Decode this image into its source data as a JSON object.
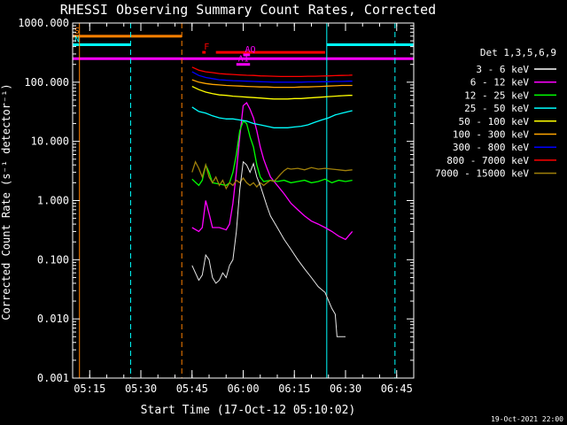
{
  "chart_data": {
    "type": "line",
    "title": "RHESSI Observing Summary Count Rates, Corrected",
    "xlabel": "Start Time (17-Oct-12 05:10:02)",
    "ylabel": "Corrected Count Rate (s⁻¹ detector⁻¹)",
    "footer": "19-Oct-2021 22:00",
    "yscale": "log",
    "ylim": [
      0.001,
      1000
    ],
    "xlim_min": [
      0,
      100
    ],
    "y_ticks": [
      {
        "v": 1000,
        "label": "1000.000"
      },
      {
        "v": 100,
        "label": "100.000"
      },
      {
        "v": 10,
        "label": "10.000"
      },
      {
        "v": 1,
        "label": "1.000"
      },
      {
        "v": 0.1,
        "label": "0.100"
      },
      {
        "v": 0.01,
        "label": "0.010"
      },
      {
        "v": 0.001,
        "label": "0.001"
      }
    ],
    "x_ticks": [
      {
        "v": 5,
        "label": "05:15"
      },
      {
        "v": 20,
        "label": "05:30"
      },
      {
        "v": 35,
        "label": "05:45"
      },
      {
        "v": 50,
        "label": "06:00"
      },
      {
        "v": 65,
        "label": "06:15"
      },
      {
        "v": 80,
        "label": "06:30"
      },
      {
        "v": 95,
        "label": "06:45"
      }
    ],
    "legend": {
      "title": "Det 1,3,5,6,9",
      "position": "right"
    },
    "series": [
      {
        "name": "3 - 6 keV",
        "color": "#000000",
        "points": [
          [
            35,
            0.08
          ],
          [
            36,
            0.06
          ],
          [
            37,
            0.045
          ],
          [
            38,
            0.055
          ],
          [
            39,
            0.12
          ],
          [
            40,
            0.1
          ],
          [
            41,
            0.05
          ],
          [
            42,
            0.04
          ],
          [
            43,
            0.045
          ],
          [
            44,
            0.06
          ],
          [
            45,
            0.05
          ],
          [
            46,
            0.08
          ],
          [
            47,
            0.1
          ],
          [
            48,
            0.3
          ],
          [
            49,
            1.5
          ],
          [
            50,
            4.5
          ],
          [
            51,
            4.0
          ],
          [
            52,
            3.0
          ],
          [
            53,
            4.2
          ],
          [
            54,
            2.5
          ],
          [
            55,
            1.8
          ],
          [
            56,
            1.2
          ],
          [
            57,
            0.8
          ],
          [
            58,
            0.55
          ],
          [
            60,
            0.35
          ],
          [
            62,
            0.22
          ],
          [
            64,
            0.15
          ],
          [
            66,
            0.1
          ],
          [
            68,
            0.07
          ],
          [
            70,
            0.05
          ],
          [
            72,
            0.035
          ],
          [
            74,
            0.028
          ],
          [
            76,
            0.015
          ],
          [
            77,
            0.012
          ],
          [
            77.5,
            0.005
          ],
          [
            80,
            0.005
          ]
        ]
      },
      {
        "name": "6 - 12 keV",
        "color": "#ff00ff",
        "points": [
          [
            35,
            0.35
          ],
          [
            37,
            0.3
          ],
          [
            38,
            0.35
          ],
          [
            39,
            1.0
          ],
          [
            40,
            0.6
          ],
          [
            41,
            0.35
          ],
          [
            43,
            0.35
          ],
          [
            45,
            0.32
          ],
          [
            46,
            0.4
          ],
          [
            47,
            0.9
          ],
          [
            48,
            3.0
          ],
          [
            49,
            12
          ],
          [
            50,
            40
          ],
          [
            51,
            45
          ],
          [
            52,
            35
          ],
          [
            53,
            25
          ],
          [
            54,
            15
          ],
          [
            55,
            8
          ],
          [
            56,
            5
          ],
          [
            57,
            3.5
          ],
          [
            58,
            2.5
          ],
          [
            60,
            1.8
          ],
          [
            62,
            1.3
          ],
          [
            64,
            0.9
          ],
          [
            66,
            0.7
          ],
          [
            68,
            0.55
          ],
          [
            70,
            0.45
          ],
          [
            72,
            0.4
          ],
          [
            74,
            0.35
          ],
          [
            76,
            0.3
          ],
          [
            78,
            0.25
          ],
          [
            80,
            0.22
          ],
          [
            82,
            0.3
          ]
        ]
      },
      {
        "name": "12 - 25 keV",
        "color": "#00ff00",
        "points": [
          [
            35,
            2.3
          ],
          [
            37,
            1.8
          ],
          [
            38,
            2.2
          ],
          [
            39,
            4.0
          ],
          [
            40,
            3.0
          ],
          [
            41,
            2.0
          ],
          [
            43,
            1.9
          ],
          [
            45,
            1.8
          ],
          [
            46,
            2.0
          ],
          [
            47,
            3.0
          ],
          [
            48,
            6
          ],
          [
            49,
            15
          ],
          [
            50,
            22
          ],
          [
            51,
            20
          ],
          [
            52,
            12
          ],
          [
            53,
            8
          ],
          [
            54,
            4
          ],
          [
            55,
            2.5
          ],
          [
            56,
            2.1
          ],
          [
            58,
            2.2
          ],
          [
            60,
            2.1
          ],
          [
            62,
            2.2
          ],
          [
            64,
            2.0
          ],
          [
            66,
            2.1
          ],
          [
            68,
            2.2
          ],
          [
            70,
            2.0
          ],
          [
            72,
            2.1
          ],
          [
            74,
            2.3
          ],
          [
            76,
            2.0
          ],
          [
            78,
            2.2
          ],
          [
            80,
            2.1
          ],
          [
            82,
            2.2
          ]
        ]
      },
      {
        "name": "25 - 50 keV",
        "color": "#00ffff",
        "points": [
          [
            35,
            38
          ],
          [
            37,
            32
          ],
          [
            39,
            30
          ],
          [
            41,
            27
          ],
          [
            43,
            25
          ],
          [
            45,
            24
          ],
          [
            47,
            24
          ],
          [
            49,
            23
          ],
          [
            51,
            22
          ],
          [
            53,
            20
          ],
          [
            55,
            19
          ],
          [
            57,
            18
          ],
          [
            59,
            17
          ],
          [
            61,
            17
          ],
          [
            63,
            17
          ],
          [
            65,
            17.5
          ],
          [
            67,
            18
          ],
          [
            69,
            19
          ],
          [
            71,
            21
          ],
          [
            73,
            23
          ],
          [
            75,
            25
          ],
          [
            77,
            28
          ],
          [
            79,
            30
          ],
          [
            81,
            32
          ],
          [
            82,
            33
          ]
        ]
      },
      {
        "name": "50 - 100 keV",
        "color": "#ffff00",
        "points": [
          [
            35,
            85
          ],
          [
            37,
            75
          ],
          [
            39,
            68
          ],
          [
            41,
            64
          ],
          [
            43,
            61
          ],
          [
            45,
            60
          ],
          [
            47,
            58
          ],
          [
            49,
            57
          ],
          [
            51,
            56
          ],
          [
            53,
            55
          ],
          [
            55,
            54
          ],
          [
            57,
            53
          ],
          [
            59,
            52
          ],
          [
            61,
            52
          ],
          [
            63,
            52
          ],
          [
            65,
            53
          ],
          [
            67,
            53
          ],
          [
            69,
            54
          ],
          [
            71,
            55
          ],
          [
            73,
            56
          ],
          [
            75,
            57
          ],
          [
            77,
            58
          ],
          [
            79,
            59
          ],
          [
            81,
            60
          ],
          [
            82,
            60
          ]
        ]
      },
      {
        "name": "100 - 300 keV",
        "color": "#ffa500",
        "points": [
          [
            35,
            110
          ],
          [
            37,
            100
          ],
          [
            39,
            95
          ],
          [
            41,
            92
          ],
          [
            43,
            90
          ],
          [
            45,
            88
          ],
          [
            47,
            87
          ],
          [
            49,
            86
          ],
          [
            51,
            85
          ],
          [
            53,
            84
          ],
          [
            55,
            83
          ],
          [
            57,
            83
          ],
          [
            59,
            82
          ],
          [
            61,
            82
          ],
          [
            63,
            82
          ],
          [
            65,
            82
          ],
          [
            67,
            83
          ],
          [
            69,
            83
          ],
          [
            71,
            84
          ],
          [
            73,
            85
          ],
          [
            75,
            86
          ],
          [
            77,
            87
          ],
          [
            79,
            88
          ],
          [
            81,
            88
          ],
          [
            82,
            88
          ]
        ]
      },
      {
        "name": "300 - 800 keV",
        "color": "#0000ff",
        "points": [
          [
            35,
            150
          ],
          [
            37,
            130
          ],
          [
            39,
            120
          ],
          [
            41,
            115
          ],
          [
            43,
            110
          ],
          [
            45,
            108
          ],
          [
            47,
            106
          ],
          [
            49,
            105
          ],
          [
            51,
            104
          ],
          [
            53,
            103
          ],
          [
            55,
            102
          ],
          [
            57,
            101
          ],
          [
            59,
            100
          ],
          [
            61,
            100
          ],
          [
            63,
            100
          ],
          [
            65,
            100
          ],
          [
            67,
            100
          ],
          [
            69,
            101
          ],
          [
            71,
            101
          ],
          [
            73,
            102
          ],
          [
            75,
            102
          ],
          [
            77,
            103
          ],
          [
            79,
            103
          ],
          [
            81,
            104
          ],
          [
            82,
            104
          ]
        ]
      },
      {
        "name": "800 - 7000 keV",
        "color": "#ff0000",
        "points": [
          [
            35,
            180
          ],
          [
            37,
            160
          ],
          [
            39,
            150
          ],
          [
            41,
            145
          ],
          [
            43,
            140
          ],
          [
            45,
            137
          ],
          [
            47,
            135
          ],
          [
            49,
            133
          ],
          [
            51,
            131
          ],
          [
            53,
            130
          ],
          [
            55,
            128
          ],
          [
            57,
            127
          ],
          [
            59,
            126
          ],
          [
            61,
            125
          ],
          [
            63,
            125
          ],
          [
            65,
            125
          ],
          [
            67,
            125
          ],
          [
            69,
            126
          ],
          [
            71,
            126
          ],
          [
            73,
            127
          ],
          [
            75,
            128
          ],
          [
            77,
            129
          ],
          [
            79,
            130
          ],
          [
            81,
            131
          ],
          [
            82,
            132
          ]
        ]
      },
      {
        "name": "7000 - 15000 keV",
        "color": "#a0800a",
        "points": [
          [
            35,
            3.0
          ],
          [
            36,
            4.5
          ],
          [
            37,
            3.5
          ],
          [
            38,
            2.5
          ],
          [
            39,
            4.0
          ],
          [
            40,
            2.5
          ],
          [
            41,
            2.0
          ],
          [
            42,
            2.5
          ],
          [
            43,
            1.8
          ],
          [
            44,
            2.2
          ],
          [
            45,
            1.6
          ],
          [
            46,
            2.0
          ],
          [
            47,
            1.8
          ],
          [
            48,
            2.2
          ],
          [
            49,
            2.0
          ],
          [
            50,
            2.4
          ],
          [
            51,
            2.0
          ],
          [
            52,
            1.8
          ],
          [
            53,
            2.0
          ],
          [
            54,
            1.7
          ],
          [
            55,
            2.0
          ],
          [
            56,
            1.8
          ],
          [
            57,
            2.0
          ],
          [
            58,
            2.2
          ],
          [
            59,
            2.1
          ],
          [
            60,
            2.4
          ],
          [
            61,
            2.8
          ],
          [
            62,
            3.2
          ],
          [
            63,
            3.5
          ],
          [
            64,
            3.4
          ],
          [
            66,
            3.5
          ],
          [
            68,
            3.3
          ],
          [
            70,
            3.6
          ],
          [
            72,
            3.4
          ],
          [
            74,
            3.5
          ],
          [
            76,
            3.4
          ],
          [
            78,
            3.3
          ],
          [
            80,
            3.2
          ],
          [
            82,
            3.3
          ]
        ]
      }
    ],
    "flag_bars": [
      {
        "label": "S",
        "color": "#ff8000",
        "y": 600,
        "x": [
          0,
          32
        ]
      },
      {
        "label": "N",
        "color": "#00ffff",
        "y": 430,
        "x": [
          0,
          17
        ]
      },
      {
        "label": "",
        "color": "#00ffff",
        "y": 430,
        "x": [
          74.5,
          100
        ]
      },
      {
        "label": "F",
        "color": "#ff0000",
        "y": 320,
        "x": [
          38,
          39
        ]
      },
      {
        "label": "",
        "color": "#ff0000",
        "y": 320,
        "x": [
          42,
          74
        ]
      },
      {
        "label": "AQ",
        "color": "#ff00ff",
        "y": 290,
        "x": [
          50,
          52
        ]
      },
      {
        "label": "",
        "color": "#ff00ff",
        "y": 250,
        "x": [
          0,
          100
        ]
      },
      {
        "label": "A1",
        "color": "#ff00ff",
        "y": 200,
        "x": [
          48,
          52
        ]
      }
    ],
    "vlines": [
      {
        "x": 0,
        "color": "#00ffff",
        "dashed": false
      },
      {
        "x": 2,
        "color": "#ff8000",
        "dashed": false
      },
      {
        "x": 17,
        "color": "#00ffff",
        "dashed": true
      },
      {
        "x": 32,
        "color": "#ff8000",
        "dashed": true
      },
      {
        "x": 74.5,
        "color": "#00ffff",
        "dashed": false
      },
      {
        "x": 94.5,
        "color": "#00ffff",
        "dashed": true
      }
    ]
  }
}
